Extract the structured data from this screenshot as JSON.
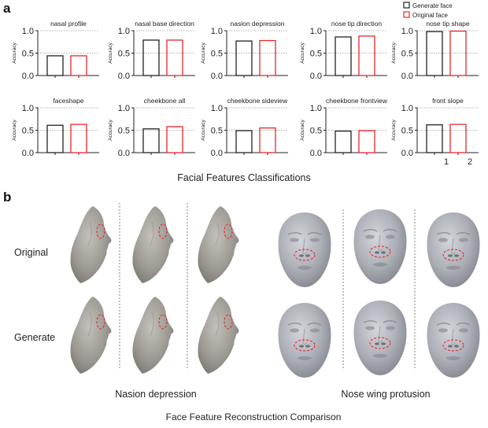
{
  "panel_a_label": "a",
  "panel_b_label": "b",
  "legend": [
    {
      "label": "Generate face",
      "color": "#222222"
    },
    {
      "label": "Original face",
      "color": "#e8262a"
    }
  ],
  "y_axis_label": "Accuracy",
  "y_ticks": [
    "0.0",
    "0.5",
    "1.0"
  ],
  "x_ticks": [
    "1",
    "2"
  ],
  "section_a_title": "Facial Features Classifications",
  "colors": {
    "generate": "#222222",
    "original": "#e8262a",
    "reference_line": "#999999",
    "face": "#a8aab4",
    "profile": "#9a9792"
  },
  "chart_data": [
    {
      "type": "bar",
      "title": "nasal profile",
      "categories": [
        "Generate face",
        "Original face"
      ],
      "values": [
        0.44,
        0.44
      ],
      "ylim": [
        0,
        1
      ],
      "reference_line": 0.5,
      "ylabel": "Accuracy"
    },
    {
      "type": "bar",
      "title": "nasal base direction",
      "categories": [
        "Generate face",
        "Original face"
      ],
      "values": [
        0.79,
        0.79
      ],
      "ylim": [
        0,
        1
      ],
      "reference_line": 0.5,
      "ylabel": "Accuracy"
    },
    {
      "type": "bar",
      "title": "nasion depression",
      "categories": [
        "Generate face",
        "Original face"
      ],
      "values": [
        0.77,
        0.78
      ],
      "ylim": [
        0,
        1
      ],
      "reference_line": 0.5,
      "ylabel": "Accuracy"
    },
    {
      "type": "bar",
      "title": "nose tip direction",
      "categories": [
        "Generate face",
        "Original face"
      ],
      "values": [
        0.86,
        0.88
      ],
      "ylim": [
        0,
        1
      ],
      "reference_line": 0.5,
      "ylabel": "Accuracy"
    },
    {
      "type": "bar",
      "title": "nose tip shape",
      "categories": [
        "Generate face",
        "Original face"
      ],
      "values": [
        0.98,
        0.99
      ],
      "ylim": [
        0,
        1
      ],
      "reference_line": 0.5,
      "ylabel": "Accuracy"
    },
    {
      "type": "bar",
      "title": "faceshape",
      "categories": [
        "Generate face",
        "Original face"
      ],
      "values": [
        0.61,
        0.63
      ],
      "ylim": [
        0,
        1
      ],
      "reference_line": 0.5,
      "ylabel": "Accuracy"
    },
    {
      "type": "bar",
      "title": "cheekbone all",
      "categories": [
        "Generate face",
        "Original face"
      ],
      "values": [
        0.53,
        0.58
      ],
      "ylim": [
        0,
        1
      ],
      "reference_line": 0.5,
      "ylabel": "Accuracy"
    },
    {
      "type": "bar",
      "title": "cheekbone sideview",
      "categories": [
        "Generate face",
        "Original face"
      ],
      "values": [
        0.49,
        0.55
      ],
      "ylim": [
        0,
        1
      ],
      "reference_line": 0.5,
      "ylabel": "Accuracy"
    },
    {
      "type": "bar",
      "title": "cheekbone frontview",
      "categories": [
        "Generate face",
        "Original face"
      ],
      "values": [
        0.48,
        0.49
      ],
      "ylim": [
        0,
        1
      ],
      "reference_line": 0.5,
      "ylabel": "Accuracy"
    },
    {
      "type": "bar",
      "title": "front slope",
      "categories": [
        "Generate face",
        "Original face"
      ],
      "values": [
        0.62,
        0.63
      ],
      "ylim": [
        0,
        1
      ],
      "reference_line": 0.5,
      "ylabel": "Accuracy"
    }
  ],
  "row_labels": [
    "Original",
    "Generate"
  ],
  "caption_left": "Nasion depression",
  "caption_right": "Nose wing protusion",
  "caption_bottom": "Face Feature Reconstruction Comparison"
}
